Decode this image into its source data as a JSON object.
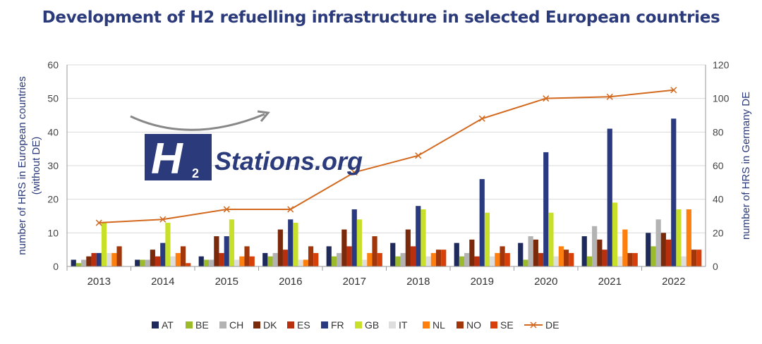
{
  "chart_data": {
    "type": "bar",
    "title": "Development of H2 refuelling infrastructure in selected European countries",
    "categories": [
      "2013",
      "2014",
      "2015",
      "2016",
      "2017",
      "2018",
      "2019",
      "2020",
      "2021",
      "2022"
    ],
    "ylabel": "number of HRS in European countries (without DE)",
    "y2label": "number of HRS in Germany DE",
    "ylim": [
      0,
      60
    ],
    "y2lim": [
      0,
      120
    ],
    "yticks": [
      0,
      10,
      20,
      30,
      40,
      50,
      60
    ],
    "y2ticks": [
      0,
      20,
      40,
      60,
      80,
      100,
      120
    ],
    "grid": true,
    "legend": "bottom",
    "series": [
      {
        "name": "AT",
        "color": "#1f2a5c",
        "values": [
          2,
          2,
          3,
          4,
          6,
          7,
          7,
          7,
          9,
          10
        ]
      },
      {
        "name": "BE",
        "color": "#9bbb2a",
        "values": [
          1,
          2,
          2,
          3,
          3,
          3,
          3,
          2,
          3,
          6
        ]
      },
      {
        "name": "CH",
        "color": "#b3b3b3",
        "values": [
          2,
          2,
          2,
          4,
          4,
          4,
          4,
          9,
          12,
          14
        ]
      },
      {
        "name": "DK",
        "color": "#7a2a0a",
        "values": [
          3,
          5,
          9,
          11,
          11,
          11,
          8,
          8,
          8,
          10
        ]
      },
      {
        "name": "ES",
        "color": "#b8300e",
        "values": [
          4,
          3,
          4,
          5,
          6,
          6,
          3,
          4,
          5,
          8
        ]
      },
      {
        "name": "FR",
        "color": "#2a3a80",
        "values": [
          4,
          7,
          9,
          14,
          17,
          18,
          26,
          34,
          41,
          44
        ]
      },
      {
        "name": "GB",
        "color": "#c8e02a",
        "values": [
          13,
          13,
          14,
          13,
          14,
          17,
          16,
          16,
          19,
          17
        ]
      },
      {
        "name": "IT",
        "color": "#dedede",
        "values": [
          4,
          3,
          2,
          2,
          2,
          3,
          3,
          3,
          3,
          3
        ]
      },
      {
        "name": "NL",
        "color": "#ff7f0e",
        "values": [
          4,
          4,
          3,
          2,
          4,
          4,
          4,
          6,
          11,
          17
        ]
      },
      {
        "name": "NO",
        "color": "#a0360a",
        "values": [
          6,
          6,
          6,
          6,
          9,
          5,
          6,
          5,
          4,
          5
        ]
      },
      {
        "name": "SE",
        "color": "#d8400a",
        "values": [
          0,
          1,
          3,
          4,
          4,
          5,
          4,
          4,
          4,
          5
        ]
      }
    ],
    "line_series": {
      "name": "DE",
      "color": "#d2691e",
      "axis": "right",
      "values": [
        26,
        28,
        34,
        34,
        56,
        66,
        88,
        100,
        101,
        105
      ]
    }
  },
  "logo": {
    "text": "Stations.org",
    "letter": "H",
    "subscript": "2"
  }
}
